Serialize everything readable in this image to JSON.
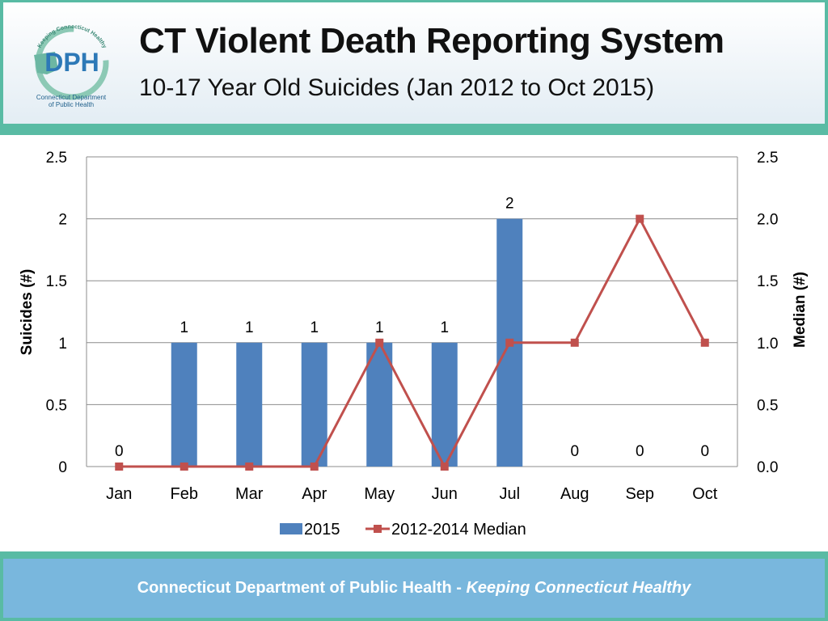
{
  "header": {
    "title": "CT Violent Death Reporting System",
    "subtitle": "10-17 Year Old Suicides (Jan 2012 to Oct 2015)"
  },
  "logo": {
    "text": "DPH",
    "arc_text": "Keeping Connecticut Healthy",
    "caption_line1": "Connecticut Department",
    "caption_line2": "of Public Health"
  },
  "footer": {
    "text": "Connecticut Department of Public Health",
    "separator": " - ",
    "tagline": "Keeping Connecticut Healthy"
  },
  "colors": {
    "bar": "#4f81bd",
    "line": "#c0504d",
    "frame": "#59bba4",
    "footer_bg": "#79b7dd"
  },
  "chart_data": {
    "type": "bar",
    "categories": [
      "Jan",
      "Feb",
      "Mar",
      "Apr",
      "May",
      "Jun",
      "Jul",
      "Aug",
      "Sep",
      "Oct"
    ],
    "series": [
      {
        "name": "2015",
        "kind": "bar",
        "axis": "left",
        "values": [
          0,
          1,
          1,
          1,
          1,
          1,
          2,
          0,
          0,
          0
        ],
        "data_labels": [
          "0",
          "1",
          "1",
          "1",
          "1",
          "1",
          "2",
          "0",
          "0",
          "0"
        ]
      },
      {
        "name": "2012-2014 Median",
        "kind": "line",
        "axis": "right",
        "marker": "square",
        "values": [
          0,
          0,
          0,
          0,
          1,
          0,
          1,
          1,
          2,
          1
        ]
      }
    ],
    "ylabel": "Suicides (#)",
    "y2label": "Median (#)",
    "ylim": [
      0,
      2.5
    ],
    "y2lim": [
      0,
      2.5
    ],
    "yticks": [
      "0",
      "0.5",
      "1",
      "1.5",
      "2",
      "2.5"
    ],
    "y2ticks": [
      "0.0",
      "0.5",
      "1.0",
      "1.5",
      "2.0",
      "2.5"
    ],
    "grid": true,
    "legend": "bottom"
  }
}
